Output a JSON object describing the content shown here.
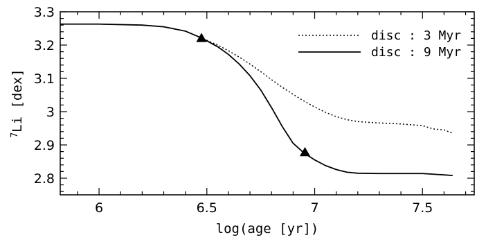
{
  "chart_data": {
    "type": "line",
    "xlabel": "log(age [yr])",
    "ylabel": "7Li [dex]",
    "ylabel_parts": {
      "superscript": "7",
      "main": "Li [dex]"
    },
    "xlim": [
      5.82,
      7.74
    ],
    "ylim": [
      2.75,
      3.3
    ],
    "x_ticks": [
      6,
      6.5,
      7,
      7.5
    ],
    "x_tick_labels": [
      "6",
      "6.5",
      "7",
      "7.5"
    ],
    "y_ticks": [
      2.8,
      2.9,
      3,
      3.1,
      3.2,
      3.3
    ],
    "y_tick_labels": [
      "2.8",
      "2.9",
      "3",
      "3.1",
      "3.2",
      "3.3"
    ],
    "legend_position": "top-right",
    "series": [
      {
        "name": "disc : 3 Myr",
        "style": "dotted",
        "color": "#000000",
        "x": [
          5.82,
          6.0,
          6.2,
          6.3,
          6.4,
          6.48,
          6.55,
          6.6,
          6.65,
          6.7,
          6.75,
          6.8,
          6.85,
          6.9,
          6.95,
          7.0,
          7.05,
          7.1,
          7.15,
          7.2,
          7.3,
          7.4,
          7.5,
          7.55,
          7.6,
          7.64
        ],
        "y": [
          3.263,
          3.263,
          3.26,
          3.255,
          3.242,
          3.22,
          3.2,
          3.183,
          3.164,
          3.143,
          3.12,
          3.096,
          3.073,
          3.052,
          3.032,
          3.014,
          2.998,
          2.985,
          2.976,
          2.97,
          2.966,
          2.963,
          2.958,
          2.948,
          2.945,
          2.935
        ]
      },
      {
        "name": "disc : 9 Myr",
        "style": "solid",
        "color": "#000000",
        "x": [
          5.82,
          6.0,
          6.2,
          6.3,
          6.4,
          6.48,
          6.55,
          6.6,
          6.65,
          6.7,
          6.75,
          6.8,
          6.85,
          6.9,
          6.95,
          7.0,
          7.05,
          7.1,
          7.15,
          7.2,
          7.3,
          7.4,
          7.5,
          7.6,
          7.64
        ],
        "y": [
          3.263,
          3.263,
          3.26,
          3.255,
          3.242,
          3.22,
          3.195,
          3.172,
          3.143,
          3.108,
          3.065,
          3.012,
          2.955,
          2.905,
          2.876,
          2.855,
          2.838,
          2.826,
          2.818,
          2.815,
          2.814,
          2.814,
          2.814,
          2.81,
          2.808
        ]
      }
    ],
    "markers": {
      "shape": "triangle",
      "color": "#000000",
      "points": [
        {
          "x": 6.475,
          "y": 3.22
        },
        {
          "x": 6.955,
          "y": 2.877
        }
      ]
    }
  }
}
